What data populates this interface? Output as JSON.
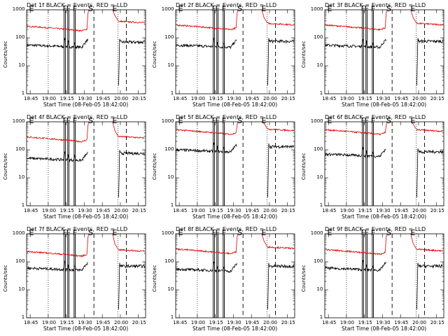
{
  "chart_data": {
    "type": "line",
    "xlabel": "Start Time (08-Feb-05 18:42:00)",
    "ylabel": "Counts/sec",
    "x_tick_labels": [
      "18:45",
      "19:00",
      "19:15",
      "19:30",
      "19:45",
      "20:00",
      "20:15"
    ],
    "x_tick_minutes": [
      45,
      60,
      75,
      90,
      105,
      120,
      135
    ],
    "x_range_minutes": [
      42,
      141
    ],
    "y_scale": "log",
    "y_range": [
      1,
      1000
    ],
    "y_tick_labels": [
      "1",
      "10",
      "100",
      "1000"
    ],
    "series_legend": {
      "black": "Events",
      "red": "LLD"
    },
    "colors": {
      "events": "#000000",
      "lld": "#e00000"
    },
    "annotation_labels": [
      "E",
      "F",
      "F",
      "F",
      "S",
      "E"
    ],
    "annotation_minutes": [
      45.2,
      73.2,
      76.2,
      81.5,
      94.5,
      114.5
    ],
    "vertical_markers": {
      "dotted_minutes": [
        60,
        118
      ],
      "dashed_minutes": [
        98,
        125
      ],
      "solid_minutes": [
        73.2,
        74.3,
        76.2,
        77.2,
        81.5,
        82.5
      ]
    },
    "panels": [
      {
        "title": "Det 1f BLACK = Events, RED = LLD",
        "events_before": 55,
        "events_after": 70,
        "lld_before": 200,
        "lld_after": 390
      },
      {
        "title": "Det 2f BLACK = Events, RED = LLD",
        "events_before": 55,
        "events_after": 75,
        "lld_before": 220,
        "lld_after": 330
      },
      {
        "title": "Det 3f BLACK = Events, RED = LLD",
        "events_before": 55,
        "events_after": 75,
        "lld_before": 220,
        "lld_after": 330
      },
      {
        "title": "Det 4f BLACK = Events, RED = LLD",
        "events_before": 50,
        "events_after": 75,
        "lld_before": 220,
        "lld_after": 300
      },
      {
        "title": "Det 5f BLACK = Events, RED = LLD",
        "events_before": 100,
        "events_after": 130,
        "lld_before": 400,
        "lld_after": 550
      },
      {
        "title": "Det 6f BLACK = Events, RED = LLD",
        "events_before": 70,
        "events_after": 85,
        "lld_before": 400,
        "lld_after": 520
      },
      {
        "title": "Det 7f BLACK = Events, RED = LLD",
        "events_before": 60,
        "events_after": 70,
        "lld_before": 180,
        "lld_after": 270
      },
      {
        "title": "Det 8f BLACK = Events, RED = LLD",
        "events_before": 55,
        "events_after": 70,
        "lld_before": 220,
        "lld_after": 340
      },
      {
        "title": "Det 9f BLACK = Events, RED = LLD",
        "events_before": 60,
        "events_after": 70,
        "lld_before": 210,
        "lld_after": 280
      }
    ]
  }
}
